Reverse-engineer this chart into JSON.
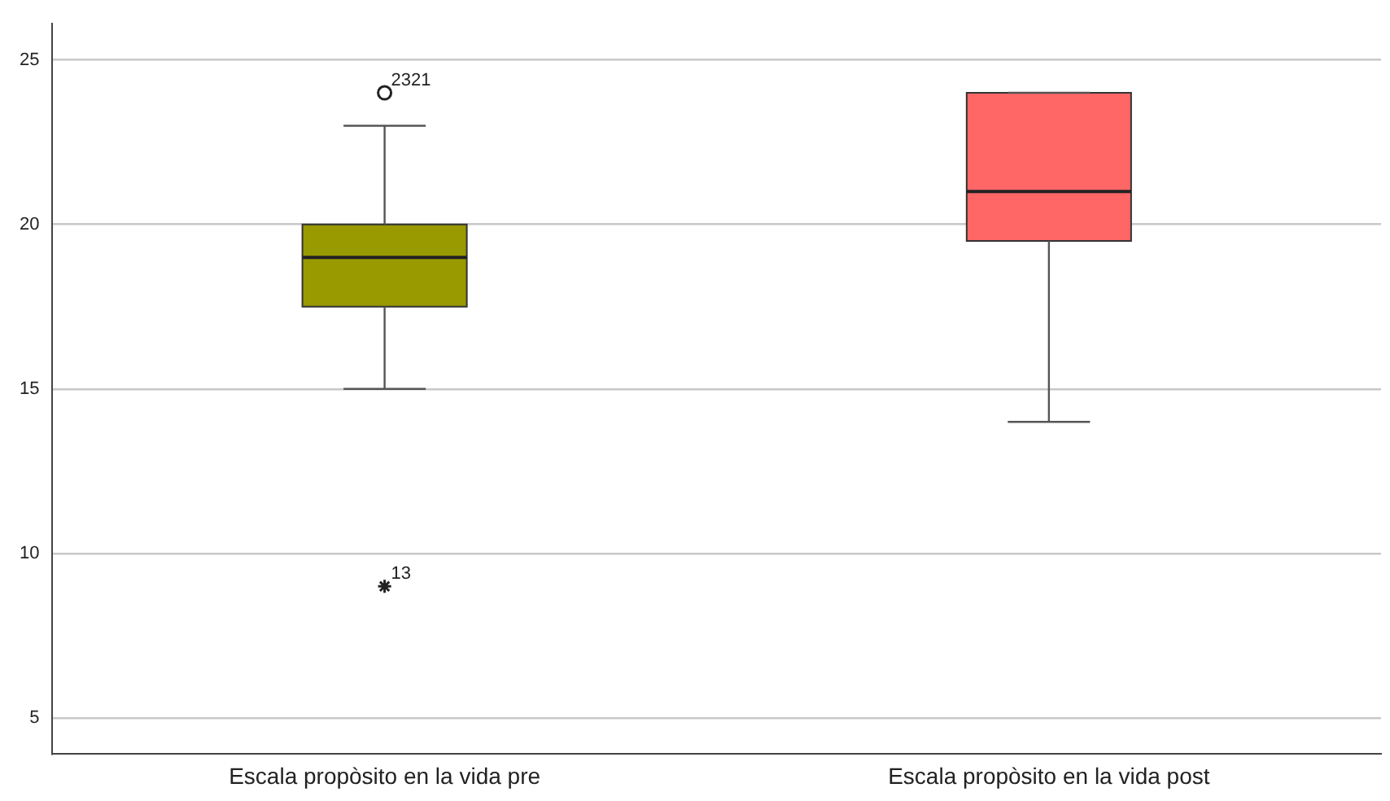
{
  "chart_data": {
    "type": "box",
    "categories": [
      "Escala propòsito en la vida pre",
      "Escala propòsito en la vida post"
    ],
    "colors": [
      "#999900",
      "#ff6666"
    ],
    "boxes": [
      {
        "low": 15,
        "q1": 17.5,
        "median": 19,
        "q3": 20,
        "high": 23,
        "outliers": [
          24,
          9
        ]
      },
      {
        "low": 14,
        "q1": 19.5,
        "median": 21,
        "q3": 24,
        "high": 24
      }
    ],
    "ylim": [
      3.9,
      26.1
    ],
    "yticks": [
      5,
      10,
      15,
      20,
      25
    ],
    "grid": "y",
    "annotations": [
      "2321",
      "13"
    ]
  }
}
